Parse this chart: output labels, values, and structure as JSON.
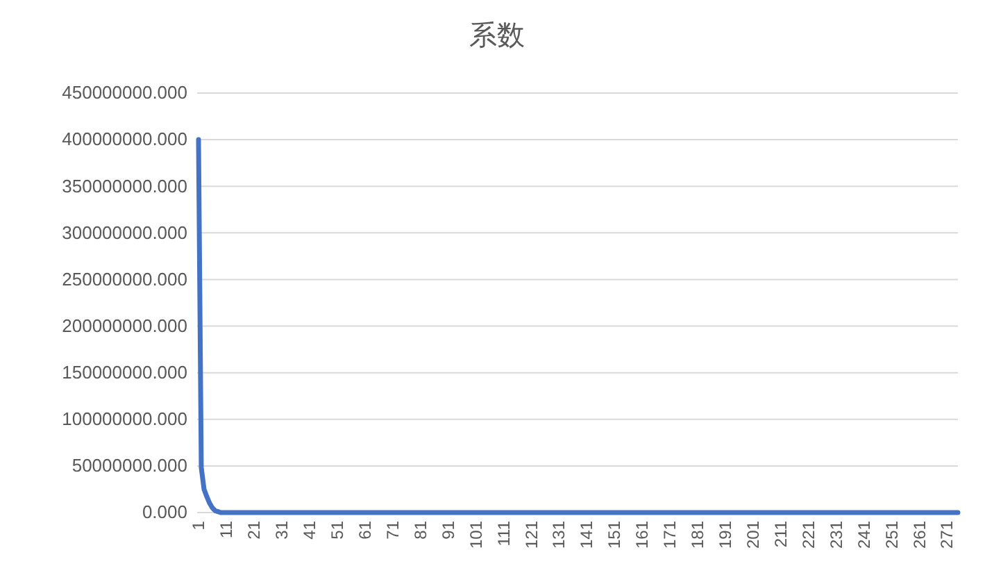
{
  "chart_data": {
    "type": "line",
    "title": "系数",
    "categories": [
      "1",
      null,
      null,
      null,
      null,
      null,
      null,
      null,
      null,
      null,
      "11",
      null,
      null,
      null,
      null,
      null,
      null,
      null,
      null,
      null,
      "21",
      null,
      null,
      null,
      null,
      null,
      null,
      null,
      null,
      null,
      "31",
      null,
      null,
      null,
      null,
      null,
      null,
      null,
      null,
      null,
      "41",
      null,
      null,
      null,
      null,
      null,
      null,
      null,
      null,
      null,
      "51",
      null,
      null,
      null,
      null,
      null,
      null,
      null,
      null,
      null,
      "61",
      null,
      null,
      null,
      null,
      null,
      null,
      null,
      null,
      null,
      "71",
      null,
      null,
      null,
      null,
      null,
      null,
      null,
      null,
      null,
      "81",
      null,
      null,
      null,
      null,
      null,
      null,
      null,
      null,
      null,
      "91",
      null,
      null,
      null,
      null,
      null,
      null,
      null,
      null,
      null,
      "101",
      null,
      null,
      null,
      null,
      null,
      null,
      null,
      null,
      null,
      "111",
      null,
      null,
      null,
      null,
      null,
      null,
      null,
      null,
      null,
      "121",
      null,
      null,
      null,
      null,
      null,
      null,
      null,
      null,
      null,
      "131",
      null,
      null,
      null,
      null,
      null,
      null,
      null,
      null,
      null,
      "141",
      null,
      null,
      null,
      null,
      null,
      null,
      null,
      null,
      null,
      "151",
      null,
      null,
      null,
      null,
      null,
      null,
      null,
      null,
      null,
      "161",
      null,
      null,
      null,
      null,
      null,
      null,
      null,
      null,
      null,
      "171",
      null,
      null,
      null,
      null,
      null,
      null,
      null,
      null,
      null,
      "181",
      null,
      null,
      null,
      null,
      null,
      null,
      null,
      null,
      null,
      "191",
      null,
      null,
      null,
      null,
      null,
      null,
      null,
      null,
      null,
      "201",
      null,
      null,
      null,
      null,
      null,
      null,
      null,
      null,
      null,
      "211",
      null,
      null,
      null,
      null,
      null,
      null,
      null,
      null,
      null,
      "221",
      null,
      null,
      null,
      null,
      null,
      null,
      null,
      null,
      null,
      "231",
      null,
      null,
      null,
      null,
      null,
      null,
      null,
      null,
      null,
      "241",
      null,
      null,
      null,
      null,
      null,
      null,
      null,
      null,
      null,
      "251",
      null,
      null,
      null,
      null,
      null,
      null,
      null,
      null,
      null,
      "261",
      null,
      null,
      null,
      null,
      null,
      null,
      null,
      null,
      null,
      "271",
      null,
      null,
      null,
      null
    ],
    "series": [
      {
        "color": "#4472c4",
        "values": [
          400000000,
          48000000,
          25000000,
          17000000,
          10000000,
          5000000,
          2000000,
          1000000,
          0,
          0,
          0,
          0,
          0,
          0,
          0,
          0,
          0,
          0,
          0,
          0,
          0,
          0,
          0,
          0,
          0,
          0,
          0,
          0,
          0,
          0,
          0,
          0,
          0,
          0,
          0,
          0,
          0,
          0,
          0,
          0,
          0,
          0,
          0,
          0,
          0,
          0,
          0,
          0,
          0,
          0,
          0,
          0,
          0,
          0,
          0,
          0,
          0,
          0,
          0,
          0,
          0,
          0,
          0,
          0,
          0,
          0,
          0,
          0,
          0,
          0,
          0,
          0,
          0,
          0,
          0,
          0,
          0,
          0,
          0,
          0,
          0,
          0,
          0,
          0,
          0,
          0,
          0,
          0,
          0,
          0,
          0,
          0,
          0,
          0,
          0,
          0,
          0,
          0,
          0,
          0,
          0,
          0,
          0,
          0,
          0,
          0,
          0,
          0,
          0,
          0,
          0,
          0,
          0,
          0,
          0,
          0,
          0,
          0,
          0,
          0,
          0,
          0,
          0,
          0,
          0,
          0,
          0,
          0,
          0,
          0,
          0,
          0,
          0,
          0,
          0,
          0,
          0,
          0,
          0,
          0,
          0,
          0,
          0,
          0,
          0,
          0,
          0,
          0,
          0,
          0,
          0,
          0,
          0,
          0,
          0,
          0,
          0,
          0,
          0,
          0,
          0,
          0,
          0,
          0,
          0,
          0,
          0,
          0,
          0,
          0,
          0,
          0,
          0,
          0,
          0,
          0,
          0,
          0,
          0,
          0,
          0,
          0,
          0,
          0,
          0,
          0,
          0,
          0,
          0,
          0,
          0,
          0,
          0,
          0,
          0,
          0,
          0,
          0,
          0,
          0,
          0,
          0,
          0,
          0,
          0,
          0,
          0,
          0,
          0,
          0,
          0,
          0,
          0,
          0,
          0,
          0,
          0,
          0,
          0,
          0,
          0,
          0,
          0,
          0,
          0,
          0,
          0,
          0,
          0,
          0,
          0,
          0,
          0,
          0,
          0,
          0,
          0,
          0,
          0,
          0,
          0,
          0,
          0,
          0,
          0,
          0,
          0,
          0,
          0,
          0,
          0,
          0,
          0,
          0,
          0,
          0,
          0,
          0,
          0,
          0,
          0,
          0,
          0,
          0,
          0,
          0,
          0,
          0,
          0,
          0,
          0,
          0,
          0,
          0,
          0
        ]
      }
    ],
    "ylim": [
      0,
      450000000
    ],
    "yticks": [
      {
        "value": 0,
        "label": "0.000"
      },
      {
        "value": 50000000,
        "label": "50000000.000"
      },
      {
        "value": 100000000,
        "label": "100000000.000"
      },
      {
        "value": 150000000,
        "label": "150000000.000"
      },
      {
        "value": 200000000,
        "label": "200000000.000"
      },
      {
        "value": 250000000,
        "label": "250000000.000"
      },
      {
        "value": 300000000,
        "label": "300000000.000"
      },
      {
        "value": 350000000,
        "label": "350000000.000"
      },
      {
        "value": 400000000,
        "label": "400000000.000"
      },
      {
        "value": 450000000,
        "label": "450000000.000"
      }
    ],
    "grid": "y",
    "marker": "none",
    "line_style": "solid"
  }
}
